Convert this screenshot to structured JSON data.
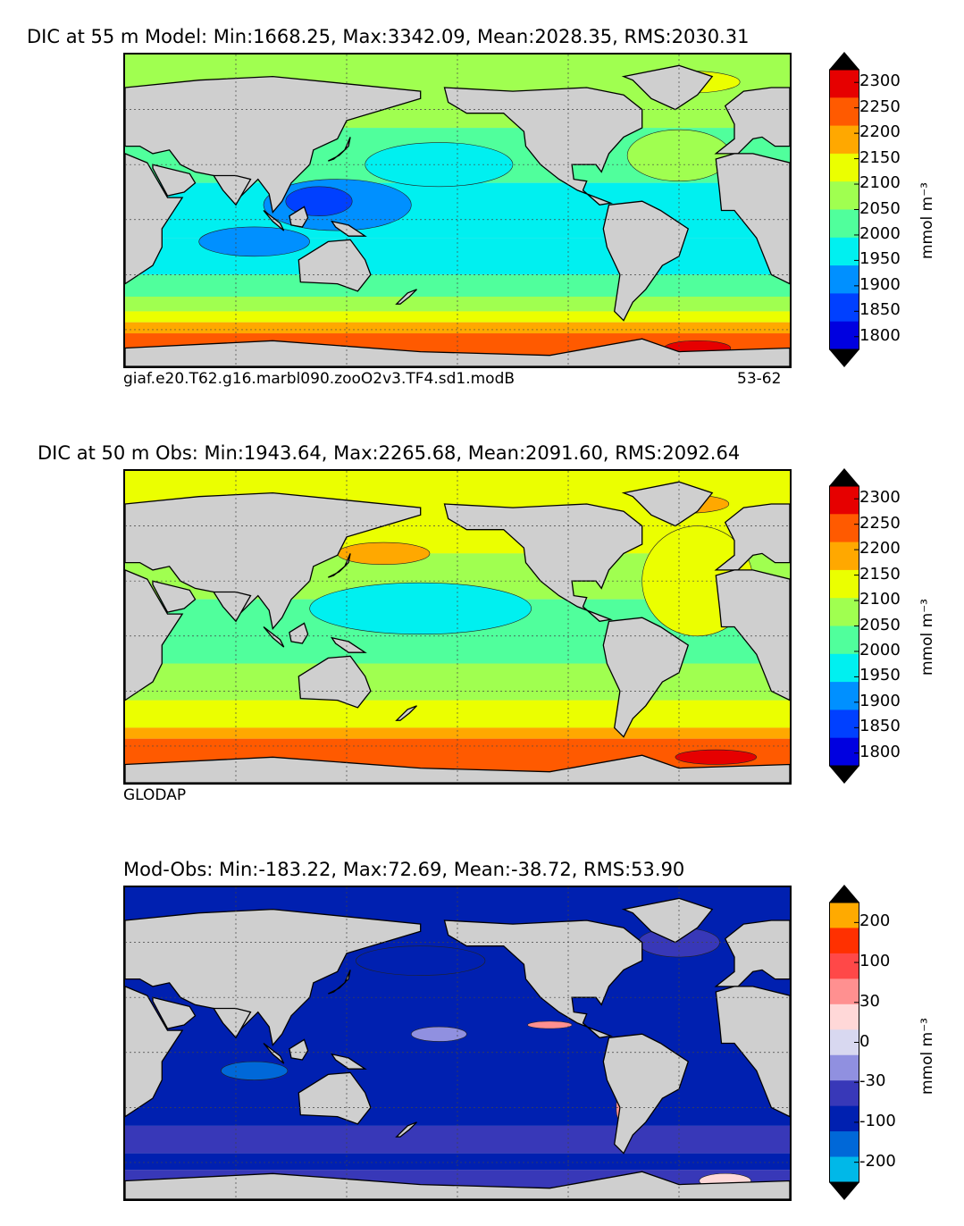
{
  "panels": [
    {
      "title": "DIC at 55 m Model: Min:1668.25, Max:3342.09, Mean:2028.35, RMS:2030.31",
      "caption_left": "giaf.e20.T62.g16.marbl090.zooO2v3.TF4.sd1.modB",
      "caption_right": "53-62",
      "colorbar": {
        "unit": "mmol m⁻³",
        "ticks": [
          "2300",
          "2250",
          "2200",
          "2150",
          "2100",
          "2050",
          "2000",
          "1950",
          "1900",
          "1850",
          "1800"
        ],
        "colors": [
          "#7f0000",
          "#e60000",
          "#ff5a00",
          "#ffa800",
          "#ebff00",
          "#a0ff50",
          "#50ff9c",
          "#00f0f0",
          "#0090ff",
          "#0040ff",
          "#0000e0",
          "#00007f"
        ]
      }
    },
    {
      "title": "DIC at 50 m Obs: Min:1943.64, Max:2265.68, Mean:2091.60, RMS:2092.64",
      "caption_left": "GLODAP",
      "caption_right": "",
      "colorbar": {
        "unit": "mmol m⁻³",
        "ticks": [
          "2300",
          "2250",
          "2200",
          "2150",
          "2100",
          "2050",
          "2000",
          "1950",
          "1900",
          "1850",
          "1800"
        ],
        "colors": [
          "#7f0000",
          "#e60000",
          "#ff5a00",
          "#ffa800",
          "#ebff00",
          "#a0ff50",
          "#50ff9c",
          "#00f0f0",
          "#0090ff",
          "#0040ff",
          "#0000e0",
          "#00007f"
        ]
      }
    },
    {
      "title": "Mod-Obs: Min:-183.22, Max:72.69, Mean:-38.72, RMS:53.90",
      "caption_left": "",
      "caption_right": "",
      "colorbar": {
        "unit": "mmol m⁻³",
        "ticks": [
          "200",
          "100",
          "30",
          "0",
          "-30",
          "-100",
          "-200"
        ],
        "colors": [
          "#ffff30",
          "#ffaa00",
          "#ff3000",
          "#ff4848",
          "#ff9090",
          "#ffd8d8",
          "#d8d8f0",
          "#9090e0",
          "#3838b8",
          "#0020b0",
          "#0068d8",
          "#00b8e8",
          "#30ffff"
        ]
      }
    }
  ],
  "chart_data": [
    {
      "type": "heatmap",
      "title": "DIC at 55 m Model: Min:1668.25, Max:3342.09, Mean:2028.35, RMS:2030.31",
      "variable": "DIC",
      "depth_m": 55,
      "unit": "mmol m^-3",
      "color_levels": [
        1800,
        1850,
        1900,
        1950,
        2000,
        2050,
        2100,
        2150,
        2200,
        2250,
        2300
      ],
      "extend": "both",
      "stats": {
        "min": 1668.25,
        "max": 3342.09,
        "mean": 2028.35,
        "rms": 2030.31
      },
      "source": "giaf.e20.T62.g16.marbl090.zooO2v3.TF4.sd1.modB",
      "years": "53-62",
      "colorbar_position": "right"
    },
    {
      "type": "heatmap",
      "title": "DIC at 50 m Obs: Min:1943.64, Max:2265.68, Mean:2091.60, RMS:2092.64",
      "variable": "DIC",
      "depth_m": 50,
      "unit": "mmol m^-3",
      "color_levels": [
        1800,
        1850,
        1900,
        1950,
        2000,
        2050,
        2100,
        2150,
        2200,
        2250,
        2300
      ],
      "extend": "both",
      "stats": {
        "min": 1943.64,
        "max": 2265.68,
        "mean": 2091.6,
        "rms": 2092.64
      },
      "source": "GLODAP",
      "colorbar_position": "right"
    },
    {
      "type": "heatmap",
      "title": "Mod-Obs: Min:-183.22, Max:72.69, Mean:-38.72, RMS:53.90",
      "variable": "DIC difference",
      "unit": "mmol m^-3",
      "color_levels": [
        -200,
        -100,
        -30,
        0,
        30,
        100,
        200
      ],
      "extend": "both",
      "stats": {
        "min": -183.22,
        "max": 72.69,
        "mean": -38.72,
        "rms": 53.9
      },
      "colorbar_position": "right"
    }
  ]
}
